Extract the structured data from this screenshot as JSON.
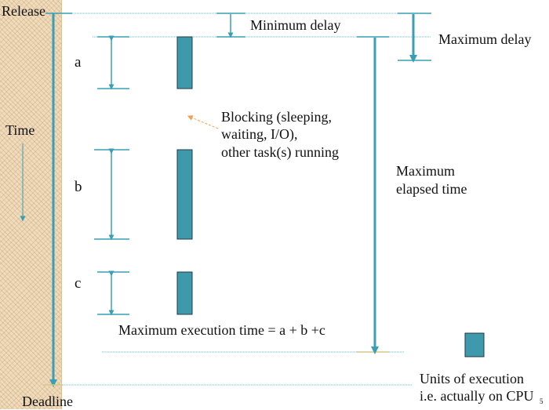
{
  "labels": {
    "release": "Release",
    "time": "Time",
    "deadline": "Deadline",
    "a": "a",
    "b": "b",
    "c": "c",
    "min_delay": "Minimum delay",
    "max_delay": "Maximum delay",
    "blocking_line1": "Blocking (sleeping,",
    "blocking_line2": "waiting, I/O),",
    "blocking_line3": "other task(s) running",
    "max_elapsed_line1": "Maximum",
    "max_elapsed_line2": "elapsed time",
    "max_exec": "Maximum execution time = a + b +c",
    "legend_line1": "Units of execution",
    "legend_line2": "i.e. actually on CPU",
    "page_number": "5"
  },
  "colors": {
    "arrow": "#3a9fb5",
    "block_fill": "#3d99ab",
    "block_stroke": "#1f3a44",
    "guide": "#7fb0c8",
    "strip": "#f0dcbc",
    "pointer": "#f0a050"
  }
}
